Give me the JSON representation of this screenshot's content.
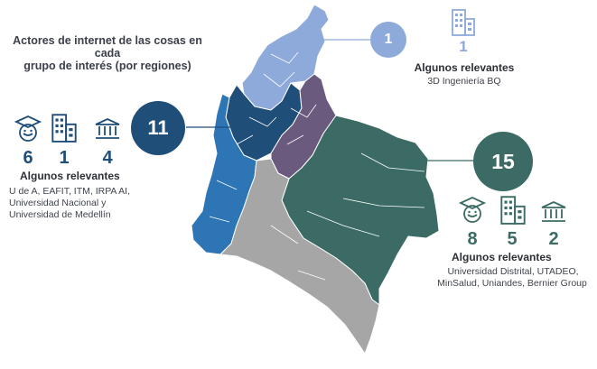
{
  "title_line1": "Actores de internet de las cosas en cada",
  "title_line2": "grupo de interés (por regiones)",
  "colors": {
    "caribe": "#8eaadb",
    "andina_norte": "#1f4e79",
    "pacifico": "#2e75b6",
    "oriente": "#6a5a7e",
    "orinoquia_amazonia": "#3b6b64",
    "sur": "#a6a6a6"
  },
  "regions": {
    "caribe": {
      "count": "1",
      "company_count": "1",
      "relevant_label": "Algunos relevantes",
      "relevant_names": "3D Ingeniería BQ",
      "icons": [
        "building-icon"
      ]
    },
    "andina": {
      "count": "11",
      "university_count": "6",
      "company_count": "1",
      "government_count": "4",
      "relevant_label": "Algunos relevantes",
      "relevant_line1": "U de A, EAFIT, ITM, IRPA AI,",
      "relevant_line2": "Universidad Nacional y",
      "relevant_line3": "Universidad de Medellín",
      "icons": [
        "graduate-icon",
        "building-icon",
        "government-icon"
      ]
    },
    "bogota": {
      "count": "15",
      "university_count": "8",
      "company_count": "5",
      "government_count": "2",
      "relevant_label": "Algunos relevantes",
      "relevant_line1": "Universidad Distrital, UTADEO,",
      "relevant_line2": "MinSalud, Uniandes, Bernier Group",
      "icons": [
        "graduate-icon",
        "building-icon",
        "government-icon"
      ]
    }
  }
}
